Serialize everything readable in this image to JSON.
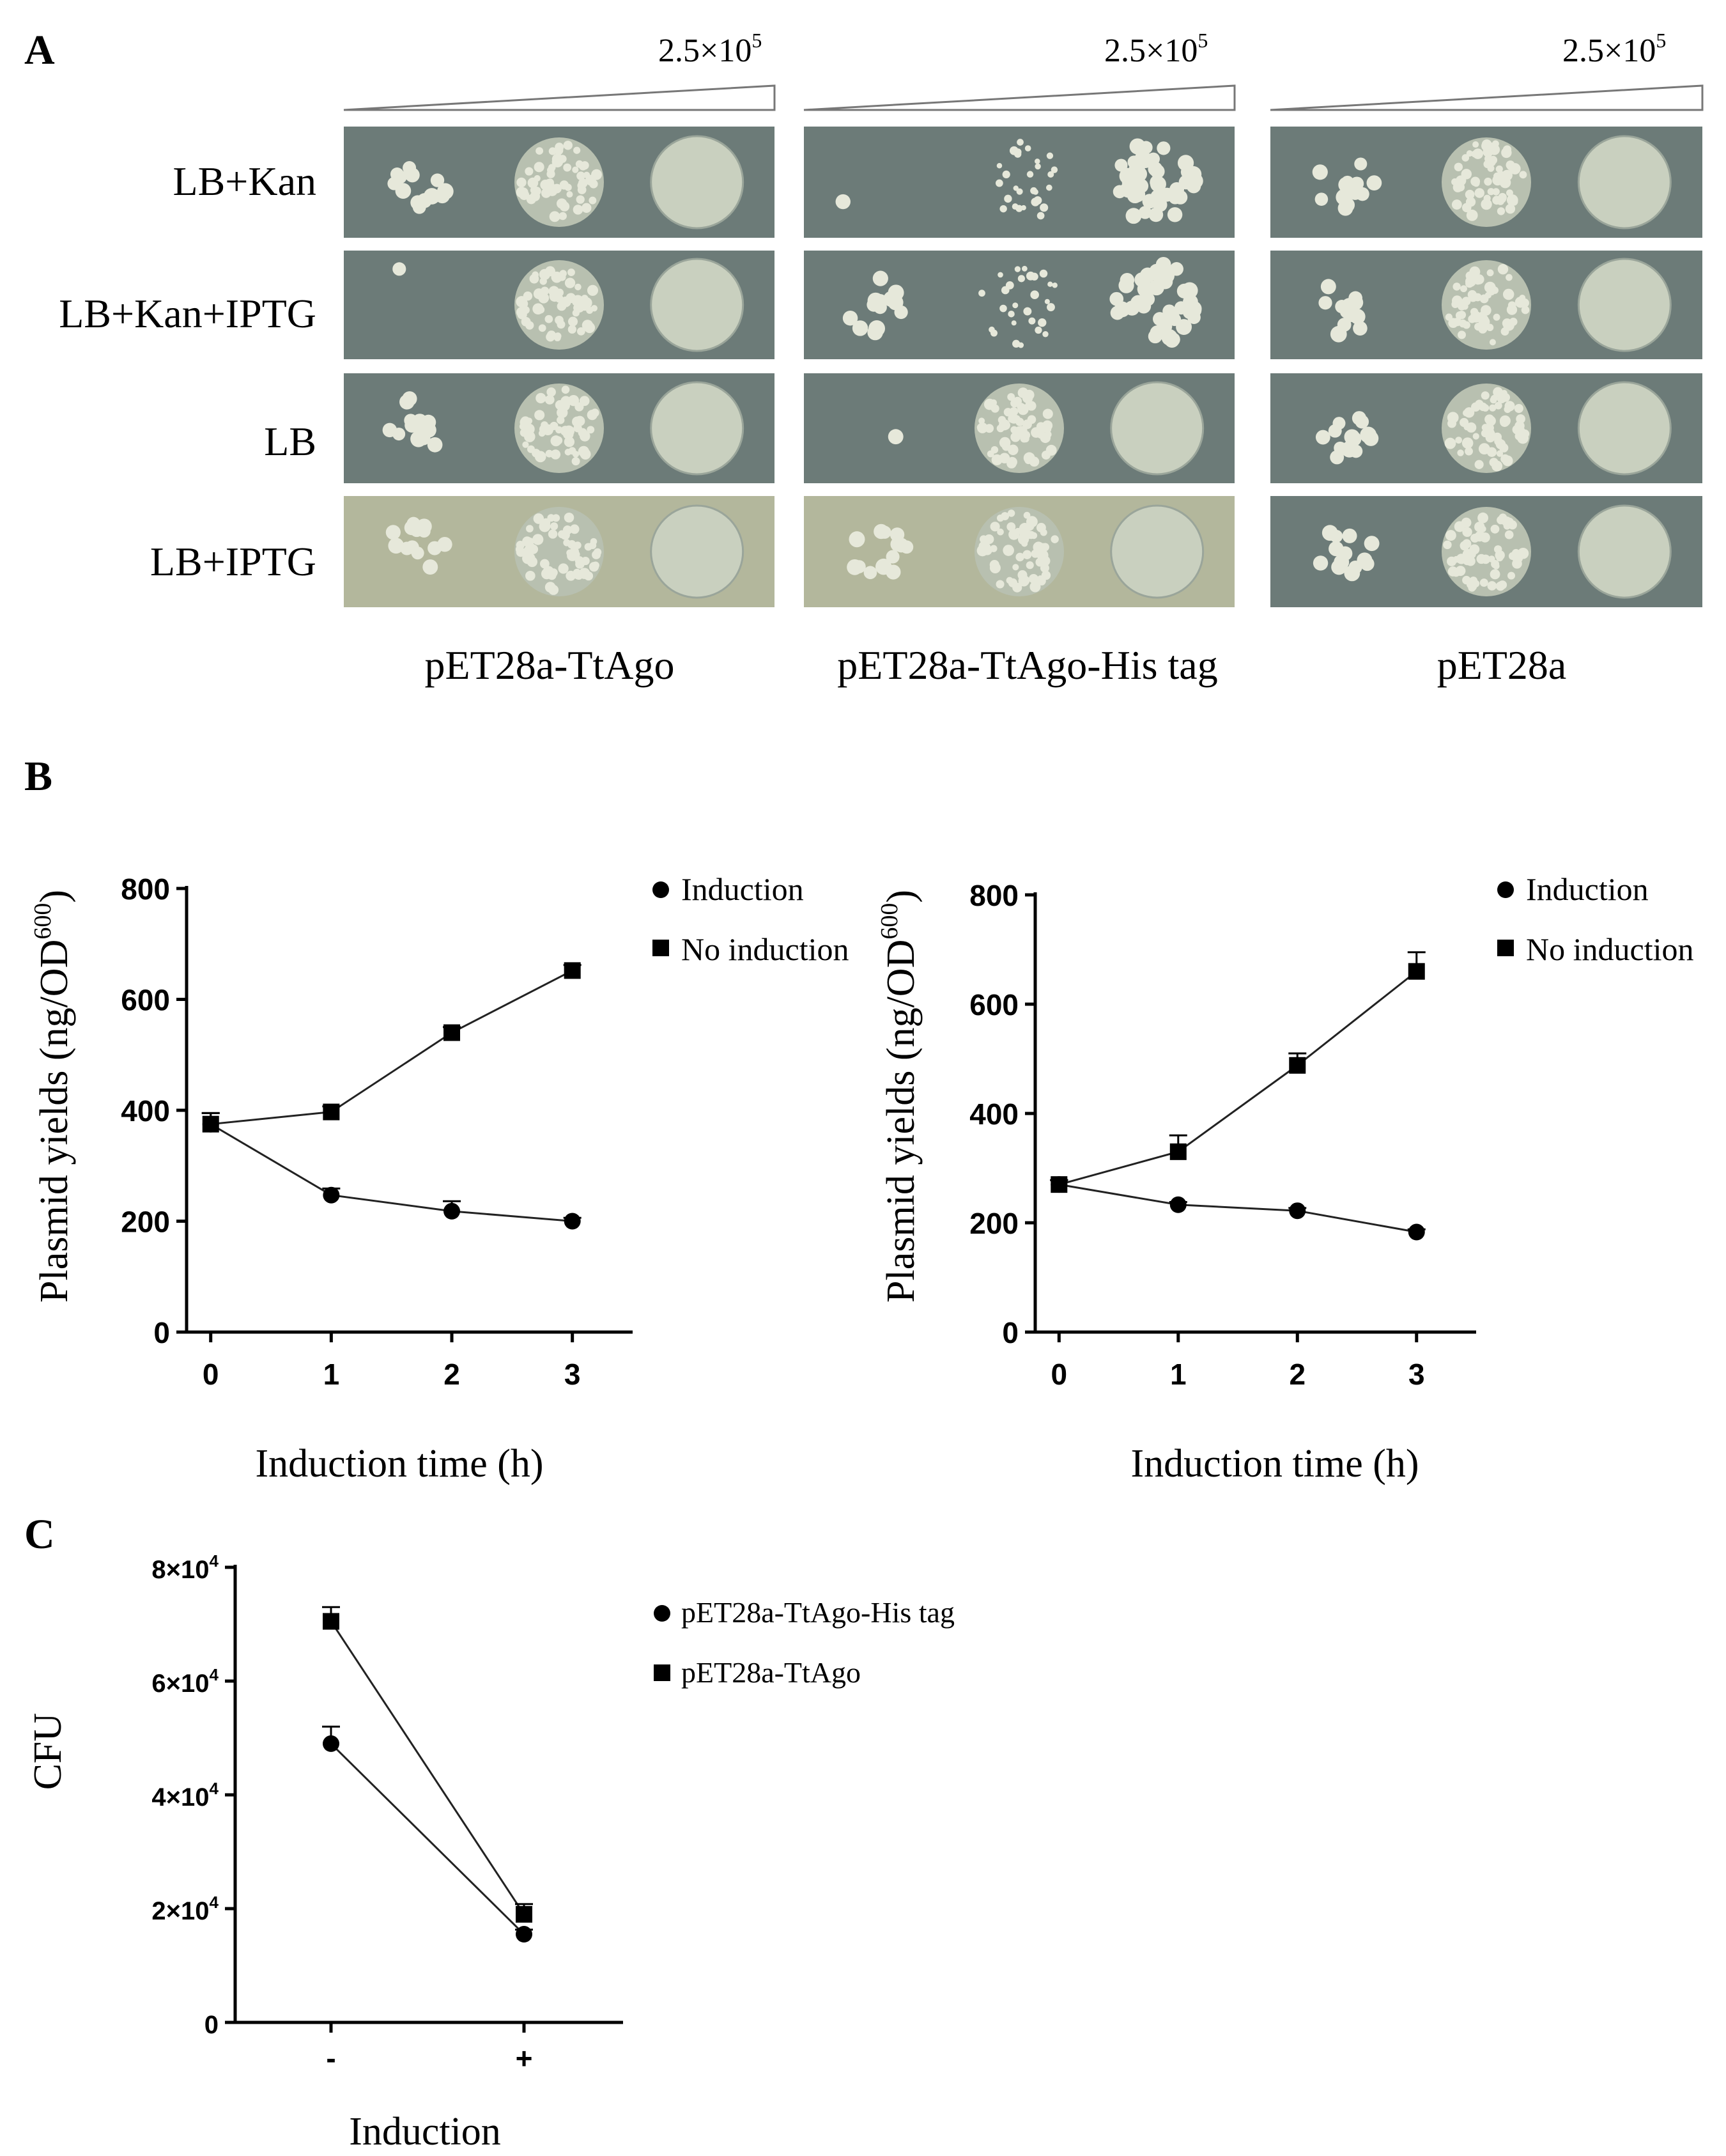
{
  "panel_a": {
    "label": "A",
    "dilution_labels": [
      "2.5×10",
      "5"
    ],
    "row_labels": [
      "LB+Kan",
      "LB+Kan+IPTG",
      "LB",
      "LB+IPTG"
    ],
    "column_labels": [
      "pET28a-TtAgo",
      "pET28a-TtAgo-His tag",
      "pET28a"
    ],
    "colors": {
      "plate": "#6c7b78",
      "plate_light": "#b3b79c",
      "colony": "#e6e8da",
      "lawn": "#c9d0bf"
    },
    "growth": [
      [
        "few",
        "dense",
        "lawn"
      ],
      [
        "trace",
        "sparse",
        "many"
      ],
      [
        "few",
        "dense",
        "lawn"
      ],
      [
        "trace",
        "dense",
        "lawn"
      ],
      [
        "few",
        "sparse",
        "many"
      ],
      [
        "few",
        "dense",
        "lawn"
      ],
      [
        "few",
        "dense",
        "lawn"
      ],
      [
        "trace",
        "dense",
        "lawn"
      ],
      [
        "few",
        "dense",
        "lawn"
      ],
      [
        "few",
        "dense",
        "lawn"
      ],
      [
        "few",
        "dense",
        "lawn"
      ],
      [
        "few",
        "dense",
        "lawn"
      ]
    ]
  },
  "panel_b": {
    "label": "B",
    "legend": [
      "Induction",
      "No induction"
    ]
  },
  "panel_c": {
    "label": "C",
    "legend": [
      "pET28a-TtAgo-His tag",
      "pET28a-TtAgo"
    ]
  },
  "chart_data": [
    {
      "type": "line",
      "panel": "B-left",
      "xlabel": "Induction time (h)",
      "ylabel": "Plasmid yields (ng/OD",
      "ylabel_sup": "600",
      "ylabel_end": ")",
      "x": [
        0,
        1,
        2,
        3
      ],
      "xlim": [
        -0.2,
        3.5
      ],
      "ylim": [
        0,
        800
      ],
      "yticks": [
        0,
        200,
        400,
        600,
        800
      ],
      "xticks": [
        0,
        1,
        2,
        3
      ],
      "series": [
        {
          "name": "Induction",
          "marker": "circle",
          "values": [
            375,
            247,
            218,
            200
          ],
          "errors": [
            20,
            12,
            18,
            6
          ]
        },
        {
          "name": "No induction",
          "marker": "square",
          "values": [
            375,
            397,
            540,
            652
          ],
          "errors": [
            20,
            10,
            10,
            10
          ]
        }
      ]
    },
    {
      "type": "line",
      "panel": "B-right",
      "xlabel": "Induction time (h)",
      "ylabel": "Plasmid yields (ng/OD",
      "ylabel_sup": "600",
      "ylabel_end": ")",
      "x": [
        0,
        1,
        2,
        3
      ],
      "xlim": [
        -0.2,
        3.5
      ],
      "ylim": [
        0,
        800
      ],
      "yticks": [
        0,
        200,
        400,
        600,
        800
      ],
      "xticks": [
        0,
        1,
        2,
        3
      ],
      "series": [
        {
          "name": "Induction",
          "marker": "circle",
          "values": [
            270,
            233,
            222,
            183
          ],
          "errors": [
            8,
            5,
            5,
            5
          ]
        },
        {
          "name": "No induction",
          "marker": "square",
          "values": [
            270,
            330,
            488,
            660
          ],
          "errors": [
            8,
            30,
            22,
            35
          ]
        }
      ]
    },
    {
      "type": "line",
      "panel": "C",
      "xlabel": "Induction",
      "ylabel": "CFU",
      "categories": [
        "-",
        "+"
      ],
      "ylim": [
        0,
        80000
      ],
      "yticks": [
        0,
        20000,
        40000,
        60000,
        80000
      ],
      "ytick_labels": [
        "0",
        "2×10",
        "4×10",
        "6×10",
        "8×10"
      ],
      "ytick_exp": "4",
      "series": [
        {
          "name": "pET28a-TtAgo-His tag",
          "marker": "circle",
          "values": [
            49000,
            15500
          ],
          "errors": [
            3000,
            800
          ]
        },
        {
          "name": "pET28a-TtAgo",
          "marker": "square",
          "values": [
            70500,
            19000
          ],
          "errors": [
            2500,
            1800
          ]
        }
      ]
    }
  ]
}
